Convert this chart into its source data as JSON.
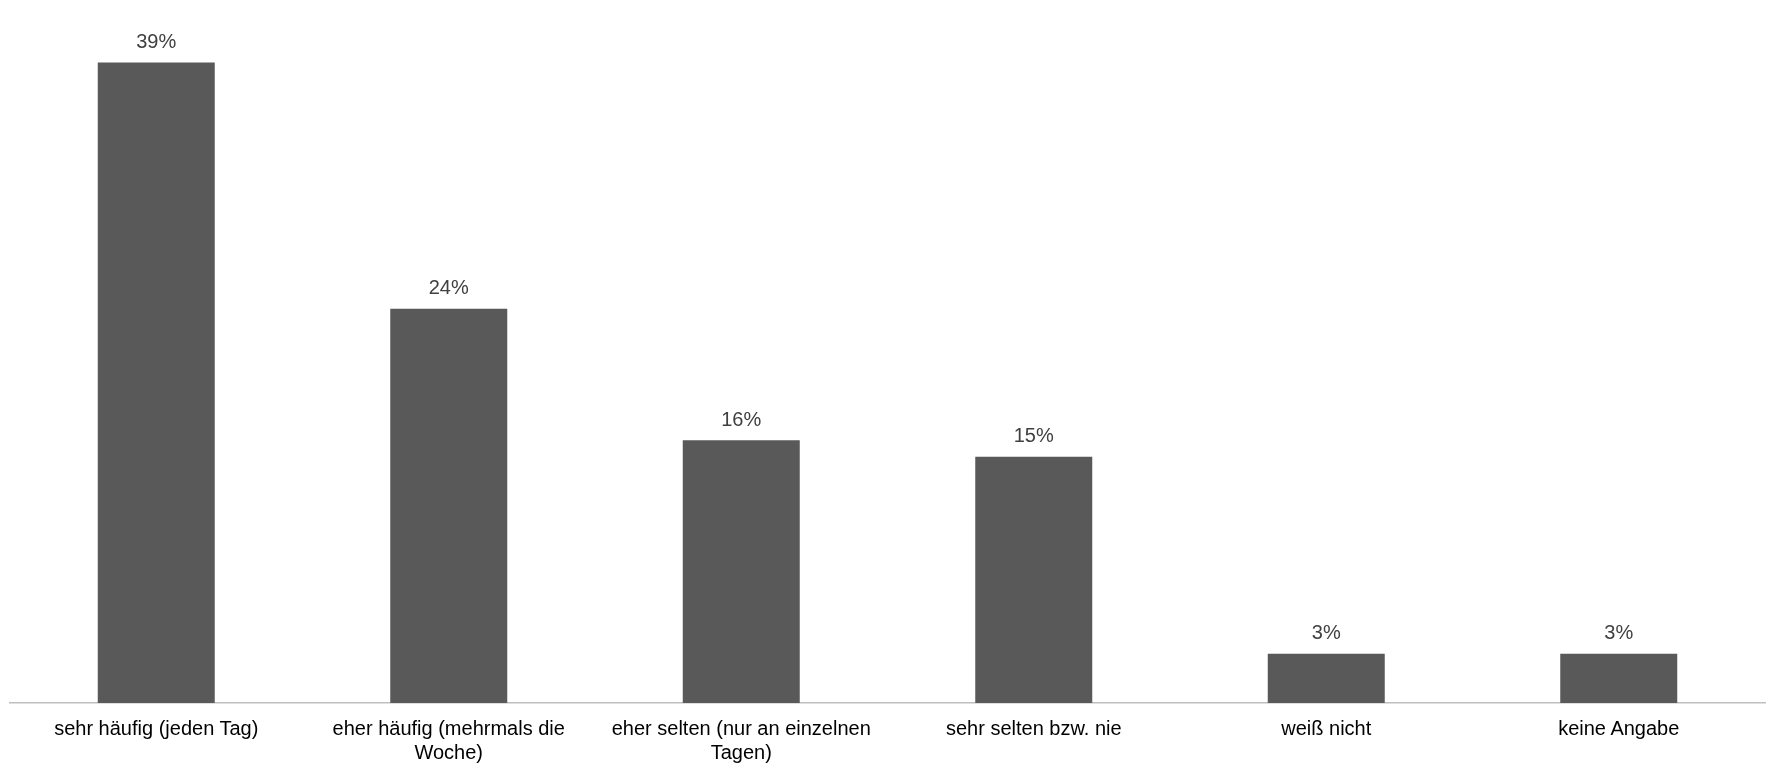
{
  "chart_data": {
    "type": "bar",
    "categories": [
      "sehr häufig (jeden Tag)",
      "eher häufig (mehrmals die Woche)",
      "eher selten (nur an einzelnen Tagen)",
      "sehr selten bzw. nie",
      "weiß nicht",
      "keine Angabe"
    ],
    "values": [
      39,
      24,
      16,
      15,
      3,
      3
    ],
    "value_labels": [
      "39%",
      "24%",
      "16%",
      "15%",
      "3%",
      "3%"
    ],
    "color": "#595959"
  }
}
